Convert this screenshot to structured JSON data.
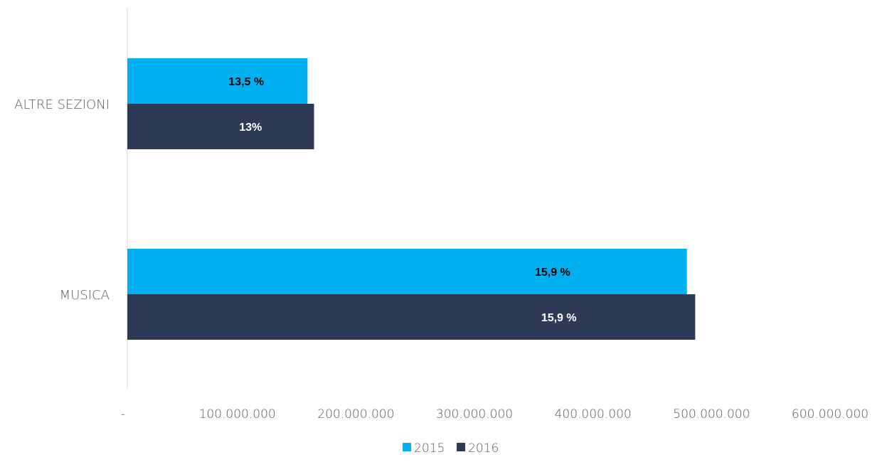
{
  "chart_data": {
    "type": "bar",
    "orientation": "horizontal",
    "categories": [
      "ALTRE SEZIONI",
      "MUSICA"
    ],
    "series": [
      {
        "name": "2015",
        "color": "#00b0f0",
        "label_color": "#000000",
        "values": [
          152000000,
          472000000
        ],
        "labels": [
          "13,5 %",
          "15,9 %"
        ]
      },
      {
        "name": "2016",
        "color": "#2c3a55",
        "label_color": "#ffffff",
        "values": [
          157500000,
          479000000
        ],
        "labels": [
          "13%",
          "15,9 %"
        ]
      }
    ],
    "xlim": [
      0,
      600000000
    ],
    "x_ticks": [
      {
        "value": 0,
        "label": "-"
      },
      {
        "value": 100000000,
        "label": "100.000.000"
      },
      {
        "value": 200000000,
        "label": "200.000.000"
      },
      {
        "value": 300000000,
        "label": "300.000.000"
      },
      {
        "value": 400000000,
        "label": "400.000.000"
      },
      {
        "value": 500000000,
        "label": "500.000.000"
      },
      {
        "value": 600000000,
        "label": "600.000.000"
      }
    ],
    "title": "",
    "xlabel": "",
    "ylabel": "",
    "grid": false,
    "legend_position": "bottom",
    "axis_color": "#d9d9d9"
  }
}
